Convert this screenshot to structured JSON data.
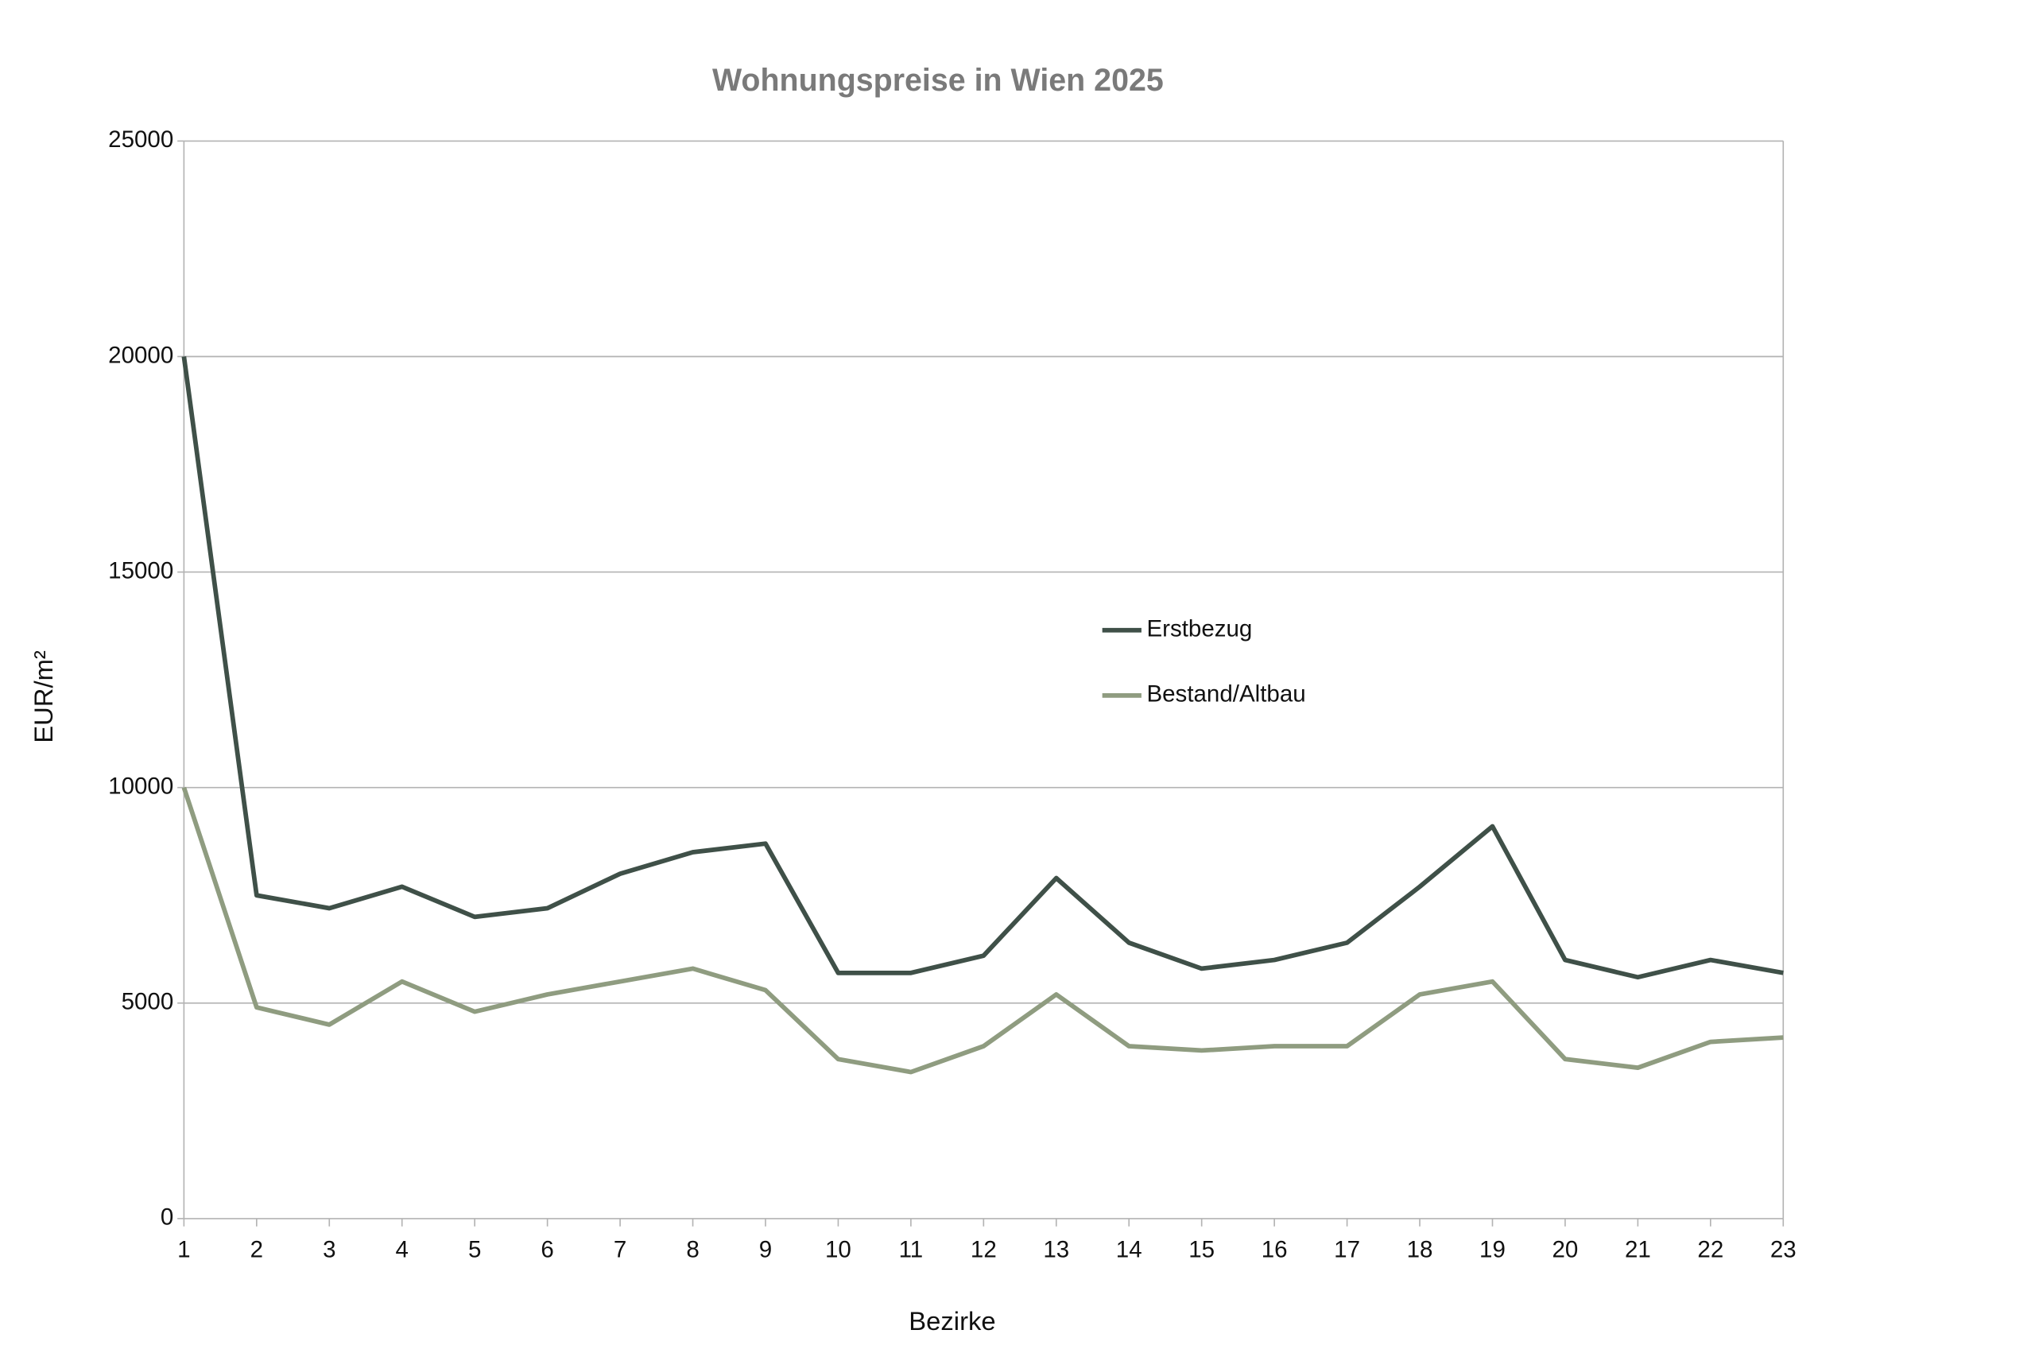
{
  "chart_data": {
    "type": "line",
    "title": "Wohnungspreise in Wien 2025",
    "x_label": "Bezirke",
    "y_label": "EUR/m²",
    "x": [
      1,
      2,
      3,
      4,
      5,
      6,
      7,
      8,
      9,
      10,
      11,
      12,
      13,
      14,
      15,
      16,
      17,
      18,
      19,
      20,
      21,
      22,
      23
    ],
    "xlim": [
      1,
      23
    ],
    "series": [
      {
        "name": "Erstbezug",
        "color": "#3f5048",
        "values": [
          20000,
          7500,
          7200,
          7700,
          7000,
          7200,
          8000,
          8500,
          8700,
          5700,
          5700,
          6100,
          7900,
          6400,
          5800,
          6000,
          6400,
          7700,
          9100,
          6000,
          5600,
          6000,
          5700
        ]
      },
      {
        "name": "Bestand/Altbau",
        "color": "#8f9c80",
        "values": [
          10000,
          4900,
          4500,
          5500,
          4800,
          5200,
          5500,
          5800,
          5300,
          3700,
          3400,
          4000,
          5200,
          4000,
          3900,
          4000,
          4000,
          5200,
          5500,
          3700,
          3500,
          4100,
          4200
        ]
      }
    ],
    "ylim": [
      0,
      25000
    ],
    "yticks": [
      0,
      5000,
      10000,
      15000,
      20000,
      25000
    ],
    "grid": true,
    "legend": "center"
  }
}
